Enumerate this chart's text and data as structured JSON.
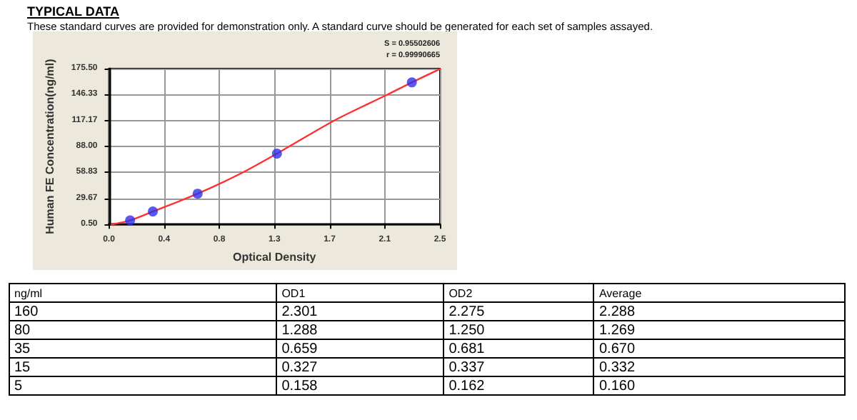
{
  "chart_data": [
    {
      "type": "scatter",
      "title": "TYPICAL DATA",
      "subtitle": "These standard curves are provided for demonstration only. A standard curve should be generated for each set of samples assayed.",
      "xlabel": "Optical Density",
      "ylabel": "Human FE Concentration(ng/ml)",
      "annotations": [
        "S = 0.95502606",
        "r = 0.99990665"
      ],
      "xlim": [
        0,
        2.5
      ],
      "xticks": [
        {
          "value": 0,
          "label": "0.0"
        },
        {
          "value": 0.4167,
          "label": "0.4"
        },
        {
          "value": 0.8333,
          "label": "0.8"
        },
        {
          "value": 1.25,
          "label": "1.3"
        },
        {
          "value": 1.6667,
          "label": "1.7"
        },
        {
          "value": 2.0833,
          "label": "2.1"
        },
        {
          "value": 2.5,
          "label": "2.5"
        }
      ],
      "ylim": [
        0.5,
        175.5
      ],
      "yticks": [
        {
          "value": 0.5,
          "label": "0.50"
        },
        29.67,
        58.83,
        {
          "value": 88,
          "label": "88.00"
        },
        117.17,
        146.33,
        {
          "value": 175.5,
          "label": "175.50"
        }
      ],
      "grid": true,
      "series": [
        {
          "type": "scatter",
          "color": "#3030e8",
          "marker": "circle",
          "x": [
            0.16,
            0.332,
            0.67,
            1.269,
            2.288
          ],
          "values": [
            5,
            15,
            35,
            80,
            160
          ]
        },
        {
          "type": "line",
          "color": "#ff3030",
          "marker": "none",
          "line_style": "solid",
          "x": [
            0.02,
            0.16,
            0.332,
            0.67,
            1.0,
            1.269,
            1.7,
            2.1,
            2.288,
            2.5
          ],
          "values": [
            0.5,
            5,
            15,
            35,
            58,
            80,
            117,
            146,
            160,
            175
          ]
        }
      ]
    },
    {
      "type": "other",
      "xlabel": "ng/ml",
      "categories": [
        "160",
        "80",
        "35",
        "15",
        "5"
      ],
      "series": [
        {
          "name": "OD1",
          "values": [
            2.301,
            1.288,
            0.659,
            0.327,
            0.158
          ],
          "value_labels": [
            "2.301",
            "1.288",
            "0.659",
            "0.327",
            "0.158"
          ]
        },
        {
          "name": "OD2",
          "values": [
            2.275,
            1.25,
            0.681,
            0.337,
            0.162
          ],
          "value_labels": [
            "2.275",
            "1.250",
            "0.681",
            "0.337",
            "0.162"
          ]
        },
        {
          "name": "Average",
          "values": [
            2.288,
            1.269,
            0.67,
            0.332,
            0.16
          ],
          "value_labels": [
            "2.288",
            "1.269",
            "0.670",
            "0.332",
            "0.160"
          ]
        }
      ]
    }
  ]
}
